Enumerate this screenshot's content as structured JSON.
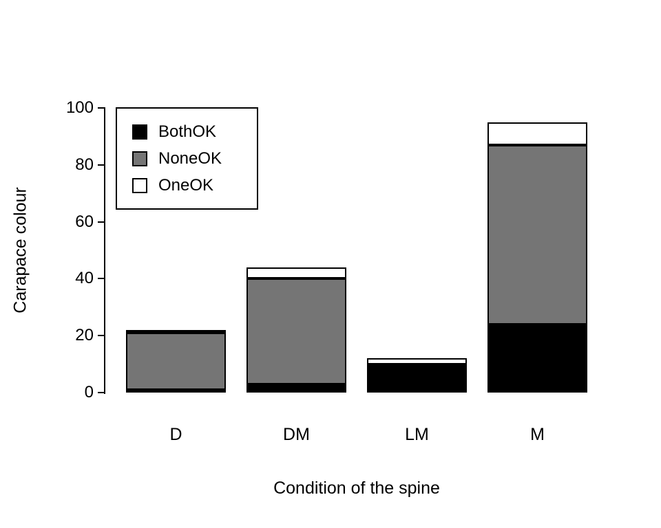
{
  "chart_data": {
    "type": "bar",
    "stacked": true,
    "title": "",
    "xlabel": "Condition of the spine",
    "ylabel": "Carapace colour",
    "categories": [
      "D",
      "DM",
      "LM",
      "M"
    ],
    "series": [
      {
        "name": "BothOK",
        "color": "#000000",
        "values": [
          1,
          3,
          9,
          24
        ]
      },
      {
        "name": "NoneOK",
        "color": "#757575",
        "values": [
          20,
          37,
          1,
          63
        ]
      },
      {
        "name": "OneOK",
        "color": "#ffffff",
        "values": [
          1,
          4,
          2,
          8
        ]
      }
    ],
    "totals": [
      22,
      44,
      12,
      95
    ],
    "ylim": [
      0,
      100
    ],
    "yticks": [
      0,
      20,
      40,
      60,
      80,
      100
    ],
    "grid": false,
    "legend_position": "top-left",
    "bar_border_color": "#000000",
    "background_color": "#ffffff"
  }
}
